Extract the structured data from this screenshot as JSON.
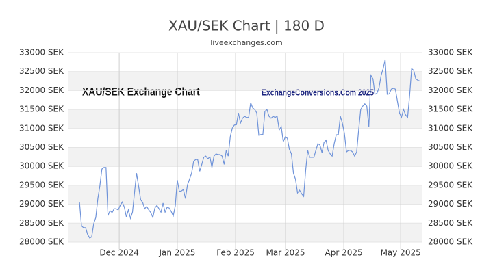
{
  "chart_data": {
    "type": "line",
    "title": "XAU/SEK Chart | 180 D",
    "subtitle": "liveexchanges.com",
    "annotations": [
      "XAU/SEK Exchange Chart",
      "ExchangeConversions.Com 2025"
    ],
    "color": "#6f93d9",
    "values": [
      29050,
      28430,
      28380,
      28380,
      28200,
      28110,
      28140,
      28490,
      28650,
      29150,
      29480,
      29930,
      29970,
      29970,
      28700,
      28830,
      28780,
      28880,
      28880,
      28850,
      28970,
      29060,
      28920,
      28670,
      28850,
      28630,
      28790,
      29300,
      29820,
      29480,
      29120,
      29050,
      28880,
      28940,
      28850,
      28780,
      28650,
      28900,
      28970,
      28880,
      28790,
      29030,
      28790,
      28920,
      28900,
      28810,
      28690,
      28960,
      29640,
      29340,
      29350,
      29390,
      29150,
      29510,
      29660,
      29820,
      30130,
      30180,
      30180,
      29870,
      30050,
      30240,
      30270,
      30200,
      30250,
      29970,
      30270,
      30330,
      30310,
      30310,
      30270,
      30050,
      30420,
      30270,
      30780,
      31010,
      31090,
      31100,
      31410,
      31140,
      31270,
      31320,
      31290,
      31290,
      31680,
      31540,
      31500,
      31410,
      30820,
      30840,
      30840,
      31450,
      31500,
      31320,
      31270,
      31320,
      31290,
      31320,
      30960,
      31050,
      30650,
      30780,
      30740,
      30450,
      30330,
      29820,
      29660,
      29300,
      29370,
      29280,
      29210,
      29910,
      30420,
      30240,
      30240,
      30240,
      30420,
      30600,
      30560,
      30360,
      30630,
      30690,
      30420,
      30330,
      30270,
      30600,
      30830,
      30840,
      31320,
      31140,
      30870,
      30380,
      30420,
      30420,
      30380,
      30270,
      30380,
      30960,
      31500,
      31590,
      31650,
      31590,
      31050,
      32400,
      32310,
      31900,
      31930,
      32080,
      32400,
      32580,
      32820,
      31900,
      31910,
      32040,
      32060,
      32040,
      31720,
      31410,
      31290,
      31500,
      31360,
      31290,
      31860,
      32580,
      32530,
      32310,
      32270,
      32250
    ],
    "xlim": [
      -5.4,
      168.3
    ],
    "xticks": [
      {
        "value": 19.5,
        "label": "Dec 2024"
      },
      {
        "value": 48,
        "label": "Jan 2025"
      },
      {
        "value": 76.6,
        "label": "Feb 2025"
      },
      {
        "value": 101.1,
        "label": "Mar 2025"
      },
      {
        "value": 129.7,
        "label": "Apr 2025"
      },
      {
        "value": 157.6,
        "label": "May 2025"
      }
    ],
    "ylim": [
      28000,
      33000
    ],
    "yticks": [
      {
        "value": 28000,
        "label": "28000 SEK"
      },
      {
        "value": 28500,
        "label": "28500 SEK"
      },
      {
        "value": 29000,
        "label": "29000 SEK"
      },
      {
        "value": 29500,
        "label": "29500 SEK"
      },
      {
        "value": 30000,
        "label": "30000 SEK"
      },
      {
        "value": 30500,
        "label": "30500 SEK"
      },
      {
        "value": 31000,
        "label": "31000 SEK"
      },
      {
        "value": 31500,
        "label": "31500 SEK"
      },
      {
        "value": 32000,
        "label": "32000 SEK"
      },
      {
        "value": 32500,
        "label": "32500 SEK"
      },
      {
        "value": 33000,
        "label": "33000 SEK"
      }
    ],
    "grid": true
  }
}
